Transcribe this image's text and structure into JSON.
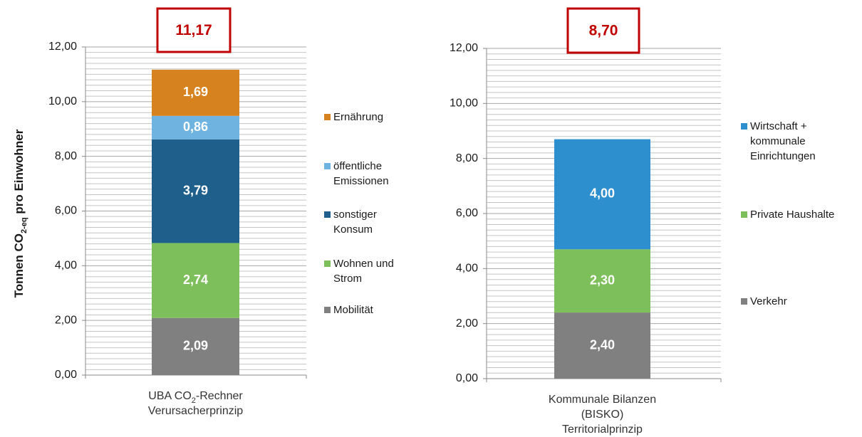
{
  "chart_data": [
    {
      "type": "stacked_bar",
      "ylabel": [
        {
          "text": "Tonnen CO"
        },
        {
          "text": "2-eq",
          "sub": true
        },
        {
          "text": " pro Einwohner"
        }
      ],
      "category": [
        [
          {
            "text": "UBA CO"
          },
          {
            "text": "2",
            "sub": true
          },
          {
            "text": "-Rechner"
          }
        ],
        [
          {
            "text": "Verursacherprinzip"
          }
        ]
      ],
      "total_label": "11,17",
      "ylim": [
        0,
        12
      ],
      "yticks": [
        {
          "value": 0,
          "label": "0,00"
        },
        {
          "value": 2,
          "label": "2,00"
        },
        {
          "value": 4,
          "label": "4,00"
        },
        {
          "value": 6,
          "label": "6,00"
        },
        {
          "value": 8,
          "label": "8,00"
        },
        {
          "value": 10,
          "label": "10,00"
        },
        {
          "value": 12,
          "label": "12,00"
        }
      ],
      "minor_yticks": [
        0.2,
        0.4,
        0.6,
        0.8,
        1,
        1.2,
        1.4,
        1.6,
        1.8,
        2.2,
        2.4,
        2.6,
        2.8,
        3,
        3.2,
        3.4,
        3.6,
        3.8,
        4.2,
        4.4,
        4.6,
        4.8,
        5,
        5.2,
        5.4,
        5.6,
        5.8,
        6.2,
        6.4,
        6.6,
        6.8,
        7,
        7.2,
        7.4,
        7.6,
        7.8,
        8.2,
        8.4,
        8.6,
        8.8,
        9,
        9.2,
        9.4,
        9.6,
        9.8,
        10.2,
        10.4,
        10.6,
        10.8,
        11,
        11.2,
        11.4,
        11.6,
        11.8
      ],
      "grid": true,
      "legend": "right",
      "series": [
        {
          "name": "Mobilität",
          "color": "#808080",
          "values": [
            2.09
          ],
          "value_labels": [
            "2,09"
          ]
        },
        {
          "name": "Wohnen und\nStrom",
          "color": "#7dbf5a",
          "values": [
            2.74
          ],
          "value_labels": [
            "2,74"
          ]
        },
        {
          "name": "sonstiger\nKonsum",
          "color": "#1f5f8b",
          "values": [
            3.79
          ],
          "value_labels": [
            "3,79"
          ]
        },
        {
          "name": "öffentliche\nEmissionen",
          "color": "#6fb3e0",
          "values": [
            0.86
          ],
          "value_labels": [
            "0,86"
          ]
        },
        {
          "name": "Ernährung",
          "color": "#d6821e",
          "values": [
            1.69
          ],
          "value_labels": [
            "1,69"
          ]
        }
      ]
    },
    {
      "type": "stacked_bar",
      "category": [
        [
          {
            "text": "Kommunale Bilanzen"
          }
        ],
        [
          {
            "text": "(BISKO)"
          }
        ],
        [
          {
            "text": "Territorialprinzip"
          }
        ]
      ],
      "total_label": "8,70",
      "ylim": [
        0,
        12
      ],
      "yticks": [
        {
          "value": 0,
          "label": "0,00"
        },
        {
          "value": 2,
          "label": "2,00"
        },
        {
          "value": 4,
          "label": "4,00"
        },
        {
          "value": 6,
          "label": "6,00"
        },
        {
          "value": 8,
          "label": "8,00"
        },
        {
          "value": 10,
          "label": "10,00"
        },
        {
          "value": 12,
          "label": "12,00"
        }
      ],
      "minor_yticks": [
        0.2,
        0.4,
        0.6,
        0.8,
        1,
        1.2,
        1.4,
        1.6,
        1.8,
        2.2,
        2.4,
        2.6,
        2.8,
        3,
        3.2,
        3.4,
        3.6,
        3.8,
        4.2,
        4.4,
        4.6,
        4.8,
        5,
        5.2,
        5.4,
        5.6,
        5.8,
        6.2,
        6.4,
        6.6,
        6.8,
        7,
        7.2,
        7.4,
        7.6,
        7.8,
        8.2,
        8.4,
        8.6,
        8.8,
        9,
        9.2,
        9.4,
        9.6,
        9.8,
        10.2,
        10.4,
        10.6,
        10.8,
        11,
        11.2,
        11.4,
        11.6,
        11.8
      ],
      "grid": true,
      "legend": "right",
      "series": [
        {
          "name": "Verkehr",
          "color": "#808080",
          "values": [
            2.4
          ],
          "value_labels": [
            "2,40"
          ]
        },
        {
          "name": "Private Haushalte",
          "color": "#7dbf5a",
          "values": [
            2.3
          ],
          "value_labels": [
            "2,30"
          ]
        },
        {
          "name": "Wirtschaft +\nkommunale\nEinrichtungen",
          "color": "#2e8fcf",
          "values": [
            4.0
          ],
          "value_labels": [
            "4,00"
          ]
        }
      ]
    }
  ]
}
